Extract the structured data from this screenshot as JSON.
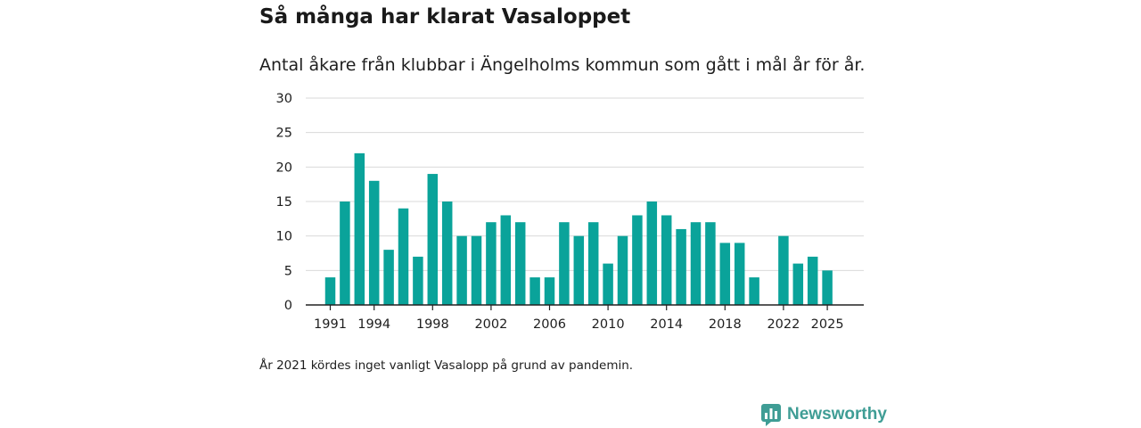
{
  "title": "Så många har klarat Vasaloppet",
  "subtitle": "Antal åkare från klubbar i Ängelholms kommun som gått i mål år för år.",
  "note": "År 2021 kördes inget vanligt Vasalopp på grund av pandemin.",
  "brand": {
    "name": "Newsworthy",
    "icon": "newsworthy-logo-icon"
  },
  "colors": {
    "bar": "#0aa39a",
    "grid": "#d9d9d9",
    "axis": "#222222"
  },
  "chart_data": {
    "type": "bar",
    "title": "Så många har klarat Vasaloppet",
    "xlabel": "",
    "ylabel": "",
    "ylim": [
      0,
      30
    ],
    "yticks": [
      0,
      5,
      10,
      15,
      20,
      25,
      30
    ],
    "xticks": [
      "1991",
      "1994",
      "1998",
      "2002",
      "2006",
      "2010",
      "2014",
      "2018",
      "2022",
      "2025"
    ],
    "grid": true,
    "categories": [
      "1991",
      "1992",
      "1993",
      "1994",
      "1995",
      "1996",
      "1997",
      "1998",
      "1999",
      "2000",
      "2001",
      "2002",
      "2003",
      "2004",
      "2005",
      "2006",
      "2007",
      "2008",
      "2009",
      "2010",
      "2011",
      "2012",
      "2013",
      "2014",
      "2015",
      "2016",
      "2017",
      "2018",
      "2019",
      "2020",
      "2021",
      "2022",
      "2023",
      "2024",
      "2025"
    ],
    "values": [
      4,
      15,
      22,
      18,
      8,
      14,
      7,
      19,
      15,
      10,
      10,
      12,
      13,
      12,
      4,
      4,
      12,
      10,
      12,
      6,
      10,
      13,
      15,
      13,
      11,
      12,
      12,
      9,
      9,
      4,
      0,
      10,
      6,
      7,
      5
    ]
  }
}
